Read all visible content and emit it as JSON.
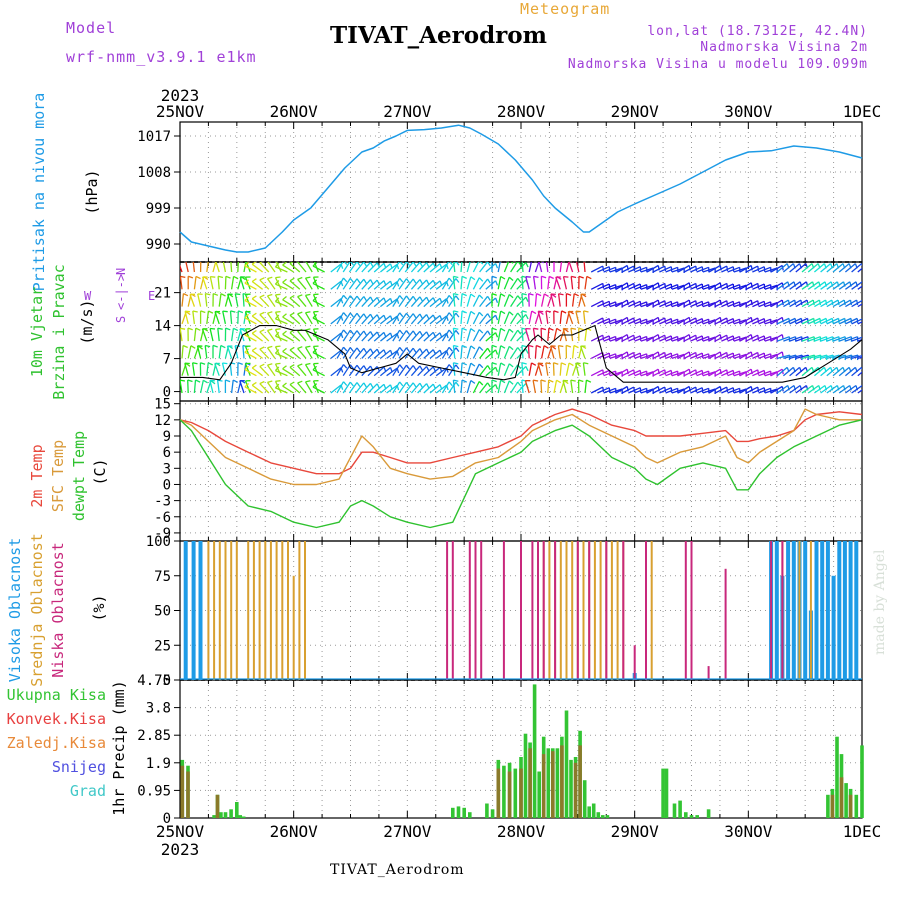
{
  "header": {
    "model_label": "Model",
    "model_value": "wrf-nmm_v3.9.1 e1km",
    "meteogram_label": "Meteogram",
    "station": "TIVAT_Aerodrom",
    "lonlat": "lon,lat (18.7312E, 42.4N)",
    "elevation": "Nadmorska Visina 2m",
    "model_elevation": "Nadmorska Visina u modelu 109.099m",
    "credit": "made by Angel",
    "footer_station": "TIVAT_Aerodrom"
  },
  "colors": {
    "pressure": "#1e9be6",
    "temp2m": "#e8483c",
    "sfc_temp": "#d99a3a",
    "dewpoint": "#2fc22f",
    "high_cloud": "#1e9be6",
    "mid_cloud": "#d8a030",
    "low_cloud": "#c8287c",
    "total_precip": "#33c433",
    "conv_precip": "#e84040",
    "frozen_precip": "#e88a3a",
    "snow": "#5050e0",
    "hail": "#40c8c8"
  },
  "chart_data": [
    {
      "type": "line",
      "title": "Pritisak na nivou mora",
      "ylabel": "(hPa)",
      "year": "2023",
      "x_ticks": [
        "25NOV",
        "26NOV",
        "27NOV",
        "28NOV",
        "29NOV",
        "30NOV",
        "1DEC"
      ],
      "y_ticks": [
        "990",
        "999",
        "1008",
        "1017"
      ],
      "ylim": [
        985.5,
        1020.5
      ],
      "xlim_days": [
        0,
        6
      ],
      "series": [
        {
          "x": [
            0,
            0.1,
            0.25,
            0.4,
            0.5,
            0.6,
            0.75,
            0.9,
            1.0,
            1.15,
            1.3,
            1.45,
            1.6,
            1.7,
            1.8,
            1.9,
            2.0,
            2.15,
            2.3,
            2.45,
            2.55,
            2.65,
            2.8,
            2.95,
            3.1,
            3.2,
            3.3,
            3.45,
            3.55,
            3.6,
            3.7,
            3.85,
            4.0,
            4.2,
            4.4,
            4.6,
            4.8,
            5.0,
            5.2,
            5.4,
            5.6,
            5.8,
            6.0
          ],
          "values": [
            993,
            990.5,
            989.5,
            988.5,
            988,
            988,
            989,
            993,
            996,
            999,
            1004,
            1009,
            1013,
            1014,
            1015.8,
            1017,
            1018.4,
            1018.6,
            1019,
            1019.7,
            1019,
            1017.5,
            1015,
            1011,
            1006,
            1002,
            999,
            995.5,
            993,
            993,
            995,
            998,
            1000,
            1002.5,
            1005,
            1008,
            1011,
            1013,
            1013.3,
            1014.5,
            1014,
            1013,
            1011.5
          ]
        }
      ]
    },
    {
      "type": "line",
      "title": "10m Vjetar",
      "subtitle": "Brzina i Pravac",
      "ylabel": "(m/s)",
      "y_ticks": [
        "0",
        "7",
        "14",
        "21"
      ],
      "ylim": [
        -2,
        27.5
      ],
      "compass": {
        "n": "N",
        "s": "S",
        "e": "E",
        "w": "W"
      },
      "series": [
        {
          "x": [
            0,
            0.2,
            0.35,
            0.45,
            0.55,
            0.7,
            0.85,
            1.0,
            1.1,
            1.3,
            1.45,
            1.5,
            1.6,
            1.75,
            1.9,
            2.0,
            2.1,
            2.3,
            2.5,
            2.7,
            2.85,
            2.95,
            3.0,
            3.1,
            3.15,
            3.25,
            3.35,
            3.45,
            3.55,
            3.65,
            3.75,
            3.9,
            4.1,
            4.3,
            4.5,
            4.7,
            4.9,
            5.1,
            5.3,
            5.5,
            5.7,
            5.9,
            6.0
          ],
          "values": [
            3,
            3,
            2.5,
            6,
            12,
            14,
            14,
            13,
            13,
            11,
            8,
            5,
            4,
            5,
            6,
            8,
            6,
            5,
            4,
            3,
            2.5,
            3,
            8,
            11,
            12,
            10,
            12,
            12,
            13,
            14,
            5,
            2,
            2,
            2,
            2,
            2,
            2,
            2,
            2,
            3,
            6,
            9,
            11
          ]
        }
      ]
    },
    {
      "type": "line",
      "ylabel": "(C)",
      "y_ticks": [
        "-9",
        "-6",
        "-3",
        "0",
        "3",
        "6",
        "9",
        "12",
        "15"
      ],
      "ylim": [
        -10.5,
        15.5
      ],
      "series": [
        {
          "name": "2m Temp",
          "x": [
            0,
            0.1,
            0.25,
            0.4,
            0.6,
            0.8,
            1.0,
            1.2,
            1.4,
            1.5,
            1.6,
            1.7,
            1.85,
            2.0,
            2.2,
            2.4,
            2.6,
            2.8,
            3.0,
            3.1,
            3.3,
            3.45,
            3.6,
            3.8,
            4.0,
            4.1,
            4.2,
            4.4,
            4.6,
            4.8,
            4.9,
            5.0,
            5.1,
            5.25,
            5.4,
            5.5,
            5.6,
            5.8,
            6.0
          ],
          "values": [
            12,
            11.5,
            10,
            8,
            6,
            4,
            3,
            2,
            2,
            3,
            6,
            6,
            5,
            4,
            4,
            5,
            6,
            7,
            9,
            11,
            13,
            14,
            13,
            11,
            10,
            9,
            9,
            9,
            9.5,
            10,
            8,
            8,
            8.5,
            9,
            10,
            12,
            13,
            13.5,
            13
          ]
        },
        {
          "name": "SFC Temp",
          "x": [
            0,
            0.1,
            0.25,
            0.4,
            0.6,
            0.8,
            1.0,
            1.2,
            1.4,
            1.5,
            1.6,
            1.7,
            1.85,
            2.0,
            2.2,
            2.4,
            2.6,
            2.8,
            3.0,
            3.1,
            3.3,
            3.45,
            3.6,
            3.8,
            4.0,
            4.1,
            4.2,
            4.4,
            4.6,
            4.8,
            4.9,
            5.0,
            5.1,
            5.25,
            5.4,
            5.5,
            5.6,
            5.8,
            6.0
          ],
          "values": [
            12,
            11,
            8,
            5,
            3,
            1,
            0,
            0,
            1,
            5,
            9,
            7,
            3,
            2,
            1,
            1.5,
            4,
            5,
            8,
            10,
            12,
            13,
            11,
            9,
            7,
            5,
            4,
            6,
            7,
            9,
            5,
            4,
            6,
            8,
            10,
            14,
            13,
            12,
            12
          ]
        },
        {
          "name": "dewpt Temp",
          "x": [
            0,
            0.1,
            0.25,
            0.4,
            0.6,
            0.8,
            1.0,
            1.2,
            1.4,
            1.5,
            1.6,
            1.7,
            1.85,
            2.0,
            2.2,
            2.4,
            2.6,
            2.8,
            3.0,
            3.1,
            3.3,
            3.45,
            3.6,
            3.8,
            4.0,
            4.1,
            4.2,
            4.4,
            4.6,
            4.8,
            4.9,
            5.0,
            5.1,
            5.25,
            5.4,
            5.5,
            5.6,
            5.8,
            6.0
          ],
          "values": [
            12,
            10,
            5,
            0,
            -4,
            -5,
            -7,
            -8,
            -7,
            -4,
            -3,
            -4,
            -6,
            -7,
            -8,
            -7,
            2,
            4,
            6,
            8,
            10,
            11,
            9,
            5,
            3,
            1,
            0,
            3,
            4,
            3,
            -1,
            -1,
            2,
            5,
            7,
            8,
            9,
            11,
            12
          ]
        }
      ]
    },
    {
      "type": "bar",
      "ylabel": "(%)",
      "y_ticks": [
        "0",
        "25",
        "50",
        "75",
        "100"
      ],
      "ylim": [
        0,
        100
      ],
      "series": [
        {
          "name": "Visoka Oblacnost",
          "x": [
            0.05,
            0.12,
            0.18,
            4.0,
            5.2,
            5.25,
            5.3,
            5.35,
            5.4,
            5.45,
            5.5,
            5.55,
            5.6,
            5.65,
            5.7,
            5.75,
            5.8,
            5.85,
            5.9,
            5.95
          ],
          "values": [
            100,
            100,
            100,
            5,
            100,
            100,
            75,
            100,
            100,
            100,
            100,
            50,
            100,
            100,
            100,
            75,
            100,
            100,
            100,
            100
          ]
        },
        {
          "name": "Srednja Oblacnost",
          "x": [
            0.25,
            0.3,
            0.35,
            0.4,
            0.45,
            0.5,
            0.6,
            0.65,
            0.7,
            0.75,
            0.8,
            0.85,
            0.9,
            0.95,
            1.0,
            1.05,
            1.1,
            3.2,
            3.25,
            3.3,
            3.35,
            3.4,
            3.45,
            3.5,
            3.55,
            3.6,
            3.65,
            3.7,
            3.75,
            3.8,
            3.85,
            3.9,
            4.1,
            4.15,
            5.3,
            5.45,
            5.55
          ],
          "values": [
            100,
            100,
            100,
            100,
            100,
            100,
            100,
            100,
            100,
            100,
            100,
            100,
            100,
            100,
            75,
            100,
            100,
            100,
            100,
            100,
            100,
            100,
            100,
            100,
            100,
            100,
            100,
            100,
            100,
            100,
            100,
            100,
            100,
            100,
            100,
            100,
            100
          ]
        },
        {
          "name": "Niska Oblacnost",
          "x": [
            2.35,
            2.4,
            2.55,
            2.6,
            2.65,
            2.85,
            3.0,
            3.1,
            3.15,
            3.2,
            3.3,
            3.5,
            3.6,
            3.75,
            3.9,
            4.0,
            4.1,
            4.45,
            4.5,
            4.65,
            4.8,
            5.2,
            5.3
          ],
          "values": [
            100,
            100,
            100,
            100,
            100,
            100,
            100,
            100,
            100,
            100,
            100,
            100,
            100,
            100,
            100,
            25,
            100,
            100,
            100,
            10,
            80,
            100,
            100
          ]
        }
      ]
    },
    {
      "type": "bar",
      "ylabel": "1hr Precip (mm)",
      "y_ticks": [
        "0",
        "0.95",
        "1.9",
        "2.85",
        "3.8",
        "4.75"
      ],
      "ylim": [
        0,
        4.75
      ],
      "legend": [
        "Ukupna Kisa",
        "Konvek.Kisa",
        "Zaledj.Kisa",
        "Snijeg",
        "Grad"
      ],
      "x_ticks": [
        "25NOV",
        "26NOV",
        "27NOV",
        "28NOV",
        "29NOV",
        "30NOV",
        "1DEC"
      ],
      "year": "2023",
      "series": [
        {
          "name": "Ukupna Kisa",
          "x": [
            0.02,
            0.07,
            0.3,
            0.33,
            0.36,
            0.4,
            0.45,
            0.5,
            0.53,
            0.56,
            2.4,
            2.45,
            2.5,
            2.55,
            2.7,
            2.75,
            2.8,
            2.85,
            2.9,
            2.95,
            3.0,
            3.04,
            3.08,
            3.12,
            3.16,
            3.2,
            3.24,
            3.28,
            3.32,
            3.36,
            3.4,
            3.44,
            3.48,
            3.52,
            3.56,
            3.6,
            3.64,
            3.68,
            3.72,
            3.76,
            4.25,
            4.28,
            4.35,
            4.4,
            4.45,
            4.5,
            4.55,
            4.65,
            5.7,
            5.74,
            5.78,
            5.82,
            5.86,
            5.9,
            5.95,
            6.0
          ],
          "values": [
            2.0,
            1.8,
            0.1,
            0.8,
            0.2,
            0.2,
            0.3,
            0.55,
            0.1,
            0.05,
            0.35,
            0.4,
            0.35,
            0.2,
            0.5,
            0.3,
            2.0,
            1.8,
            1.9,
            1.7,
            2.1,
            2.9,
            2.6,
            4.6,
            1.6,
            2.8,
            2.4,
            2.4,
            2.4,
            2.8,
            3.7,
            2.0,
            2.1,
            3.0,
            1.3,
            0.4,
            0.5,
            0.2,
            0.1,
            0.1,
            1.7,
            1.7,
            0.5,
            0.6,
            0.2,
            0.1,
            0.1,
            0.3,
            0.8,
            1.0,
            2.8,
            2.2,
            1.2,
            1.0,
            0.8,
            2.5
          ]
        },
        {
          "name": "Zaledj.Kisa",
          "x": [
            0.02,
            0.07,
            0.33,
            2.8,
            2.9,
            3.0,
            3.08,
            3.2,
            3.28,
            3.36,
            3.48,
            3.52,
            5.74,
            5.82,
            5.9
          ],
          "values": [
            1.8,
            1.6,
            0.8,
            1.7,
            1.6,
            1.7,
            2.4,
            2.2,
            2.3,
            2.5,
            1.9,
            2.5,
            0.8,
            1.4,
            0.8
          ]
        }
      ]
    }
  ]
}
